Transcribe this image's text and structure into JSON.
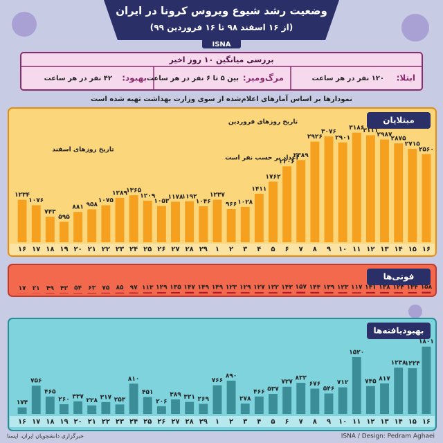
{
  "header": {
    "title": "وضعیت رشد شیوع ویروس کرونا در ایران",
    "subtitle": "(از ۱۶ اسفند ۹۸ تا ۱۶ فروردین ۹۹)",
    "badge": "ISNA"
  },
  "summary": {
    "title": "بررسی میانگین ۱۰ روز اخیر",
    "items": [
      {
        "label": "ابتلا:",
        "text": "۱۲۰ نفر در هر ساعت"
      },
      {
        "label": "مرگ‌ومیر:",
        "text": "بین ۵ تا ۶ نفر در هر ساعت"
      },
      {
        "label": "بهبود:",
        "text": "۴۲ نفر در هر ساعت"
      }
    ]
  },
  "note": "نمودارها بر اساس آمارهای اعلام‌شده از سوی وزارت بهداشت تهیه شده است",
  "chart_data": [
    {
      "type": "bar",
      "title": "مبتلایان",
      "color": "#f5a01f",
      "annotations": [
        "تاریخ روزهای اسفند",
        "تاریخ روزهای فروردین",
        "اعداد بر حسب نفر است"
      ],
      "categories": [
        "۱۶",
        "۱۷",
        "۱۸",
        "۱۹",
        "۲۰",
        "۲۱",
        "۲۲",
        "۲۳",
        "۲۴",
        "۲۵",
        "۲۶",
        "۲۷",
        "۲۸",
        "۲۹",
        "۱",
        "۲",
        "۳",
        "۴",
        "۵",
        "۶",
        "۷",
        "۸",
        "۹",
        "۱۰",
        "۱۱",
        "۱۲",
        "۱۳",
        "۱۴",
        "۱۵",
        "۱۶"
      ],
      "values": [
        1234,
        1076,
        743,
        595,
        881,
        958,
        1075,
        1289,
        1365,
        1209,
        1053,
        1178,
        1192,
        1046,
        1237,
        966,
        1028,
        1411,
        1762,
        2206,
        2389,
        2926,
        3076,
        2901,
        3186,
        3111,
        2987,
        2875,
        2715,
        2560
      ],
      "value_labels": [
        "۱۲۳۴",
        "۱۰۷۶",
        "۷۴۳",
        "۵۹۵",
        "۸۸۱",
        "۹۵۸",
        "۱۰۷۵",
        "۱۲۸۹",
        "۱۳۶۵",
        "۱۲۰۹",
        "۱۰۵۳",
        "۱۱۷۸",
        "۱۱۹۲",
        "۱۰۴۶",
        "۱۲۳۷",
        "۹۶۶",
        "۱۰۲۸",
        "۱۴۱۱",
        "۱۷۶۲",
        "۲۲۰۶",
        "۲۳۸۹",
        "۲۹۲۶",
        "۳۰۷۶",
        "۲۹۰۱",
        "۳۱۸۶",
        "۳۱۱۱",
        "۲۹۸۷",
        "۲۸۷۵",
        "۲۷۱۵",
        "۲۵۶۰"
      ],
      "ylim": [
        0,
        3300
      ]
    },
    {
      "type": "bar",
      "title": "فوتی‌ها",
      "color": "#b0182a",
      "values": [
        17,
        21,
        49,
        43,
        54,
        63,
        75,
        85,
        97,
        113,
        129,
        135,
        147,
        149,
        149,
        123,
        129,
        127,
        122,
        143,
        157,
        144,
        139,
        123,
        117,
        141,
        138,
        124,
        134,
        158
      ],
      "value_labels": [
        "۱۷",
        "۲۱",
        "۴۹",
        "۴۳",
        "۵۴",
        "۶۳",
        "۷۵",
        "۸۵",
        "۹۷",
        "۱۱۳",
        "۱۲۹",
        "۱۳۵",
        "۱۴۷",
        "۱۴۹",
        "۱۴۹",
        "۱۲۳",
        "۱۲۹",
        "۱۲۷",
        "۱۲۲",
        "۱۴۳",
        "۱۵۷",
        "۱۴۴",
        "۱۳۹",
        "۱۲۳",
        "۱۱۷",
        "۱۴۱",
        "۱۳۸",
        "۱۲۴",
        "۱۳۴",
        "۱۵۸"
      ],
      "ylim": [
        0,
        1600
      ]
    },
    {
      "type": "bar",
      "title": "بهبودیافته‌ها",
      "color": "#3b8d98",
      "categories": [
        "۱۶",
        "۱۷",
        "۱۸",
        "۱۹",
        "۲۰",
        "۲۱",
        "۲۲",
        "۲۳",
        "۲۴",
        "۲۵",
        "۲۶",
        "۲۷",
        "۲۸",
        "۲۹",
        "۱",
        "۲",
        "۳",
        "۴",
        "۵",
        "۶",
        "۷",
        "۸",
        "۹",
        "۱۰",
        "۱۱",
        "۱۲",
        "۱۳",
        "۱۴",
        "۱۵",
        "۱۶"
      ],
      "values": [
        174,
        756,
        465,
        260,
        337,
        228,
        317,
        253,
        810,
        451,
        206,
        389,
        321,
        269,
        766,
        890,
        278,
        466,
        537,
        727,
        832,
        676,
        546,
        712,
        1520,
        745,
        817,
        1238,
        1224,
        1801
      ],
      "value_labels": [
        "۱۷۴",
        "۷۵۶",
        "۴۶۵",
        "۲۶۰",
        "۳۳۷",
        "۲۲۸",
        "۳۱۷",
        "۲۵۳",
        "۸۱۰",
        "۴۵۱",
        "۲۰۶",
        "۳۸۹",
        "۳۲۱",
        "۲۶۹",
        "۷۶۶",
        "۸۹۰",
        "۲۷۸",
        "۴۶۶",
        "۵۳۷",
        "۷۲۷",
        "۸۳۲",
        "۶۷۶",
        "۵۴۶",
        "۷۱۲",
        "۱۵۲۰",
        "۷۴۵",
        "۸۱۷",
        "۱۲۳۸",
        "۱۲۲۴",
        "۱۸۰۱"
      ],
      "ylim": [
        0,
        2000
      ]
    }
  ],
  "footer": {
    "credit": "ISNA / Design: Pedram Aghaei",
    "source": "خبرگزاری دانشجویان ایران، ایسنا"
  }
}
